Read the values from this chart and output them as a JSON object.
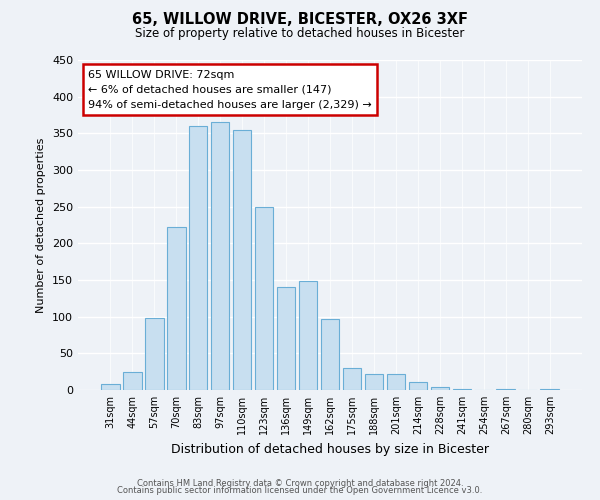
{
  "title": "65, WILLOW DRIVE, BICESTER, OX26 3XF",
  "subtitle": "Size of property relative to detached houses in Bicester",
  "xlabel": "Distribution of detached houses by size in Bicester",
  "ylabel": "Number of detached properties",
  "categories": [
    "31sqm",
    "44sqm",
    "57sqm",
    "70sqm",
    "83sqm",
    "97sqm",
    "110sqm",
    "123sqm",
    "136sqm",
    "149sqm",
    "162sqm",
    "175sqm",
    "188sqm",
    "201sqm",
    "214sqm",
    "228sqm",
    "241sqm",
    "254sqm",
    "267sqm",
    "280sqm",
    "293sqm"
  ],
  "bar_values": [
    8,
    25,
    98,
    222,
    360,
    365,
    355,
    250,
    140,
    148,
    97,
    30,
    22,
    22,
    11,
    4,
    2,
    0,
    2,
    0,
    2
  ],
  "bar_color": "#c8dff0",
  "bar_edge_color": "#6aaed6",
  "annotation_title": "65 WILLOW DRIVE: 72sqm",
  "annotation_line1": "← 6% of detached houses are smaller (147)",
  "annotation_line2": "94% of semi-detached houses are larger (2,329) →",
  "annotation_box_color": "#ffffff",
  "annotation_box_edge": "#cc0000",
  "footer_line1": "Contains HM Land Registry data © Crown copyright and database right 2024.",
  "footer_line2": "Contains public sector information licensed under the Open Government Licence v3.0.",
  "background_color": "#eef2f7",
  "ylim": [
    0,
    450
  ],
  "yticks": [
    0,
    50,
    100,
    150,
    200,
    250,
    300,
    350,
    400,
    450
  ]
}
